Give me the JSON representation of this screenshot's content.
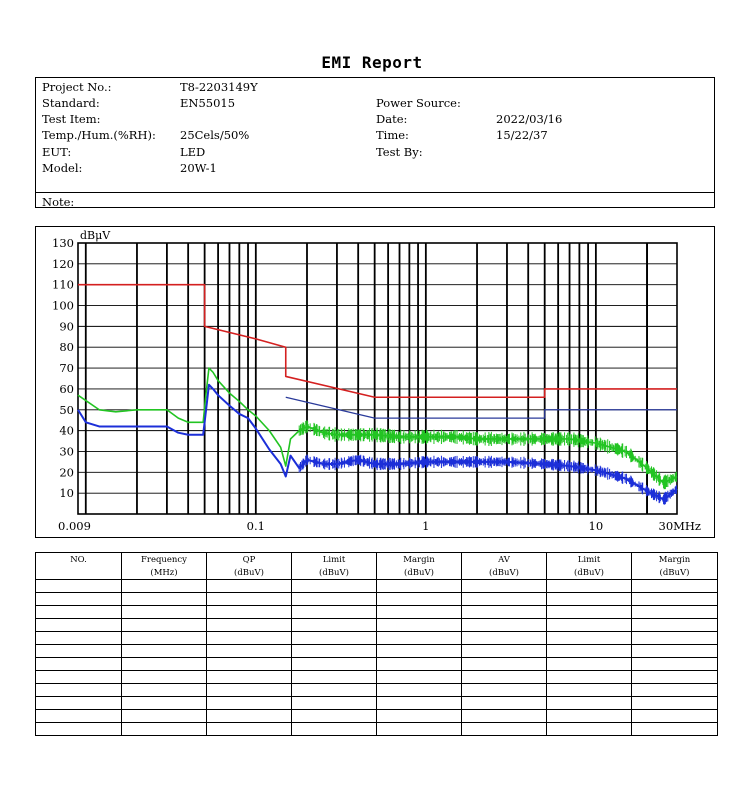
{
  "report": {
    "title": "EMI Report"
  },
  "info": {
    "project_no_label": "Project No.:",
    "project_no": "T8-2203149Y",
    "standard_label": "Standard:",
    "standard": "EN55015",
    "test_item_label": "Test Item:",
    "temp_label": "Temp./Hum.(%RH):",
    "temp": "25Cels/50%",
    "eut_label": "EUT:",
    "eut": "LED",
    "model_label": "Model:",
    "model": "20W-1",
    "power_label": "Power Source:",
    "date_label": "Date:",
    "date": "2022/03/16",
    "time_label": "Time:",
    "time": "15/22/37",
    "testby_label": "Test By:",
    "note_label": "Note:"
  },
  "colors": {
    "limit_qp": "#d42020",
    "limit_av": "#2a3a9a",
    "qp_trace": "#22c422",
    "av_trace": "#1c2fd8",
    "grid": "#000000"
  },
  "chart_data": {
    "type": "line",
    "ylabel": "dBμV",
    "y_scale": "linear",
    "x_scale": "log",
    "xlim": [
      0.009,
      30
    ],
    "ylim": [
      0,
      130
    ],
    "y_ticks": [
      10,
      20,
      30,
      40,
      50,
      60,
      70,
      80,
      90,
      100,
      110,
      120,
      130
    ],
    "y_tick_labels": [
      "10",
      "20",
      "30",
      "40",
      "50",
      "60",
      "70",
      "80",
      "90",
      "100",
      "110",
      "120",
      "130"
    ],
    "x_tick_labels": [
      {
        "value": 0.009,
        "label": "0.009"
      },
      {
        "value": 0.1,
        "label": "0.1"
      },
      {
        "value": 1,
        "label": "1"
      },
      {
        "value": 10,
        "label": "10"
      },
      {
        "value": 30,
        "label": "30MHz"
      }
    ],
    "grid": true,
    "series": [
      {
        "key": "limit_qp",
        "x": [
          0.009,
          0.05,
          0.05,
          0.1,
          0.15,
          0.15,
          0.5,
          5,
          5,
          30
        ],
        "y": [
          110,
          110,
          90,
          84,
          80,
          66,
          56,
          56,
          60,
          60
        ]
      },
      {
        "key": "limit_av",
        "x": [
          0.15,
          0.5,
          5,
          5,
          30
        ],
        "y": [
          56,
          46,
          46,
          50,
          50
        ]
      },
      {
        "key": "qp_trace",
        "x": [
          0.009,
          0.012,
          0.015,
          0.02,
          0.03,
          0.035,
          0.04,
          0.045,
          0.049,
          0.051,
          0.053,
          0.056,
          0.06,
          0.07,
          0.08,
          0.09,
          0.1,
          0.12,
          0.14,
          0.15,
          0.16,
          0.18,
          0.2,
          0.25,
          0.3,
          0.4,
          0.5,
          0.7,
          1,
          1.5,
          2,
          3,
          5,
          7,
          10,
          15,
          20,
          25,
          30
        ],
        "y": [
          57,
          50,
          49,
          50,
          50,
          46,
          44,
          44,
          44,
          58,
          70,
          68,
          64,
          58,
          54,
          50,
          47,
          40,
          32,
          23,
          36,
          40,
          42,
          39,
          38,
          38,
          38,
          37,
          37,
          37,
          36,
          36,
          36,
          36,
          34,
          30,
          22,
          15,
          18
        ]
      },
      {
        "key": "av_trace",
        "x": [
          0.009,
          0.01,
          0.012,
          0.015,
          0.02,
          0.03,
          0.035,
          0.04,
          0.045,
          0.049,
          0.051,
          0.053,
          0.056,
          0.06,
          0.07,
          0.08,
          0.09,
          0.1,
          0.12,
          0.14,
          0.15,
          0.16,
          0.18,
          0.2,
          0.25,
          0.3,
          0.4,
          0.5,
          0.7,
          1,
          1.5,
          2,
          3,
          5,
          7,
          10,
          15,
          20,
          25,
          30
        ],
        "y": [
          50,
          44,
          42,
          42,
          42,
          42,
          39,
          38,
          38,
          38,
          50,
          62,
          60,
          57,
          52,
          48,
          46,
          41,
          31,
          24,
          18,
          28,
          22,
          26,
          24,
          24,
          26,
          24,
          24,
          25,
          25,
          25,
          25,
          24,
          23,
          21,
          17,
          11,
          7,
          12
        ]
      }
    ]
  },
  "results": {
    "headers": [
      "NO.",
      "Frequency",
      "QP",
      "Limit",
      "Margin",
      "AV",
      "Limit",
      "Margin"
    ],
    "units": [
      "",
      "(MHz)",
      "(dBuV)",
      "(dBuV)",
      "(dBuV)",
      "(dBuV)",
      "(dBuV)",
      "(dBuV)"
    ],
    "rows": 12
  }
}
